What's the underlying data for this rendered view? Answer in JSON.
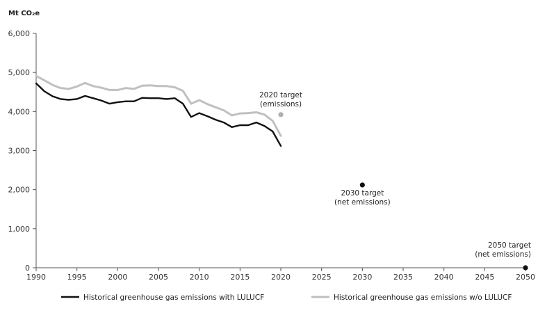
{
  "chart_data": {
    "type": "line",
    "ylabel": "Mt CO₂e",
    "ylim": [
      0,
      6000
    ],
    "xlim": [
      1990,
      2050
    ],
    "y_ticks": [
      "0",
      "1,000",
      "2,000",
      "3,000",
      "4,000",
      "5,000",
      "6,000"
    ],
    "x_ticks": [
      "1990",
      "1995",
      "2000",
      "2005",
      "2010",
      "2015",
      "2020",
      "2025",
      "2030",
      "2035",
      "2040",
      "2045",
      "2050"
    ],
    "grid": false,
    "legend_position": "bottom",
    "x": [
      1990,
      1991,
      1992,
      1993,
      1994,
      1995,
      1996,
      1997,
      1998,
      1999,
      2000,
      2001,
      2002,
      2003,
      2004,
      2005,
      2006,
      2007,
      2008,
      2009,
      2010,
      2011,
      2012,
      2013,
      2014,
      2015,
      2016,
      2017,
      2018,
      2019,
      2020
    ],
    "series": [
      {
        "name": "Historical greenhouse gas emissions with LULUCF",
        "color": "#111111",
        "values": [
          4720,
          4520,
          4390,
          4320,
          4300,
          4320,
          4400,
          4340,
          4280,
          4200,
          4240,
          4260,
          4260,
          4350,
          4340,
          4340,
          4320,
          4340,
          4200,
          3860,
          3960,
          3880,
          3790,
          3720,
          3600,
          3650,
          3650,
          3720,
          3630,
          3490,
          3120
        ]
      },
      {
        "name": "Historical greenhouse gas emissions w/o LULUCF",
        "color": "#c0c0c0",
        "values": [
          4910,
          4800,
          4680,
          4600,
          4580,
          4640,
          4730,
          4650,
          4610,
          4550,
          4550,
          4600,
          4580,
          4660,
          4670,
          4650,
          4650,
          4620,
          4530,
          4200,
          4290,
          4190,
          4110,
          4030,
          3900,
          3950,
          3960,
          3980,
          3920,
          3760,
          3380
        ]
      }
    ],
    "targets": [
      {
        "year": 2020,
        "value": 3920,
        "label_line1": "2020 target",
        "label_line2": "(emissions)",
        "color": "#b0b0b0"
      },
      {
        "year": 2030,
        "value": 2120,
        "label_line1": "2030 target",
        "label_line2": "(net emissions)",
        "color": "#111111"
      },
      {
        "year": 2050,
        "value": 0,
        "label_line1": "2050 target",
        "label_line2": "(net emissions)",
        "color": "#111111"
      }
    ]
  }
}
